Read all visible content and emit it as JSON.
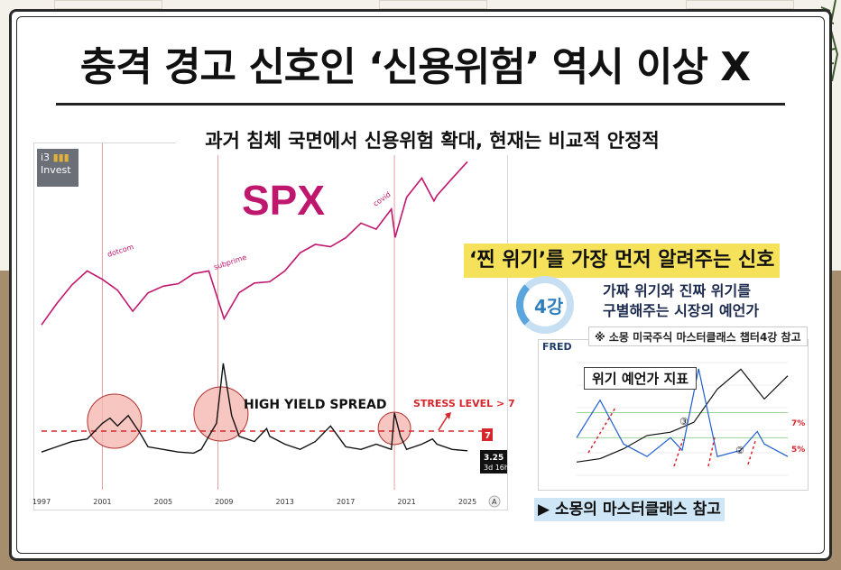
{
  "title": "충격 경고 신호인 ‘신용위험’ 역시 이상 X",
  "subtitle": "과거 침체 국면에서 신용위험 확대, 현재는 비교적 안정적",
  "left_chart": {
    "logo_line1": "i3",
    "logo_line2": "Invest",
    "spx_label": "SPX",
    "annotations": {
      "dotcom": "dotcom",
      "subprime": "subprime",
      "covid": "covid",
      "hy_spread": "HIGH YIELD SPREAD",
      "stress": "STRESS LEVEL > 7"
    },
    "current_marker": "7",
    "value_box": "3.25",
    "value_box_time": "3d 16h",
    "corner_icon": "A",
    "x_ticks": [
      "1997",
      "2001",
      "2005",
      "2009",
      "2013",
      "2017",
      "2021",
      "2025"
    ]
  },
  "highlight_title": "‘찐 위기’를 가장 먼저 알려주는 신호",
  "lecture": {
    "badge": "4강",
    "line1": "가짜 위기와 진짜 위기를",
    "line2": "구별해주는 시장의 예언가"
  },
  "reference_note": "※ 소몽 미국주식 마스터클래스 챕터4강 참고",
  "fred_chart": {
    "logo": "FRED",
    "title": "위기 예언가 지표",
    "pct_7": "7%",
    "pct_5": "5%",
    "marker_2": "②",
    "marker_3": "③"
  },
  "footnote": "▶ 소몽의 마스터클래스 참고",
  "colors": {
    "spx_line": "#c0176e",
    "spread_line": "#111111",
    "stress_line": "#d6262c",
    "crisis_circle_fill": "#f6b8b0",
    "highlight_yellow": "#f6e25a",
    "footnote_blue": "#cfe6f7"
  },
  "chart_data": [
    {
      "type": "line",
      "title": "SPX",
      "x_range": [
        1997,
        2025
      ],
      "x_ticks": [
        1997,
        2001,
        2005,
        2009,
        2013,
        2017,
        2021,
        2025
      ],
      "ylabel": "",
      "scale": "log",
      "series": [
        {
          "name": "SPX",
          "x": [
            1997,
            1998,
            1999,
            2000,
            2001,
            2002,
            2003,
            2004,
            2005,
            2006,
            2007,
            2008,
            2009,
            2010,
            2011,
            2012,
            2013,
            2014,
            2015,
            2016,
            2017,
            2018,
            2019,
            2020,
            2020.25,
            2021,
            2022,
            2022.8,
            2023,
            2024,
            2025
          ],
          "values": [
            740,
            970,
            1230,
            1469,
            1320,
            1150,
            880,
            1110,
            1210,
            1250,
            1420,
            1470,
            800,
            1115,
            1260,
            1280,
            1470,
            1850,
            2060,
            2000,
            2240,
            2700,
            2500,
            3230,
            2250,
            3750,
            4790,
            3580,
            3840,
            4770,
            5900
          ]
        }
      ],
      "annotations": [
        "dotcom",
        "subprime",
        "covid"
      ],
      "crisis_lines_x": [
        2001,
        2008.6,
        2020.2
      ]
    },
    {
      "type": "line",
      "title": "HIGH YIELD SPREAD",
      "x_range": [
        1997,
        2025
      ],
      "ylim": [
        2,
        21
      ],
      "reference_line": {
        "label": "STRESS LEVEL > 7",
        "value": 7
      },
      "current_value": 3.25,
      "series": [
        {
          "name": "HIGH YIELD SPREAD",
          "x": [
            1997,
            1998,
            1999,
            2000,
            2001,
            2001.5,
            2002,
            2002.7,
            2003.5,
            2004,
            2005,
            2006,
            2007,
            2007.5,
            2008,
            2008.5,
            2008.95,
            2009.5,
            2010,
            2011,
            2011.8,
            2012,
            2013,
            2014,
            2015,
            2016,
            2016.5,
            2017,
            2018,
            2019,
            2020,
            2020.2,
            2020.6,
            2021,
            2022,
            2022.7,
            2023,
            2024,
            2025
          ],
          "values": [
            3.0,
            4.0,
            5.0,
            5.5,
            8.5,
            9.5,
            8.0,
            10.0,
            6.5,
            4.0,
            3.5,
            3.0,
            2.8,
            3.5,
            6.0,
            8.5,
            20.0,
            10.0,
            6.0,
            5.0,
            7.5,
            6.0,
            4.5,
            3.5,
            5.0,
            8.0,
            6.0,
            4.0,
            3.5,
            4.5,
            3.5,
            10.5,
            6.0,
            3.5,
            4.5,
            5.5,
            4.5,
            3.5,
            3.25
          ]
        }
      ],
      "highlighted_crises_x": [
        2001.8,
        2008.8,
        2020.2
      ]
    },
    {
      "type": "line",
      "title": "위기 예언가 지표",
      "x_range": [
        2015,
        2024
      ],
      "series": [
        {
          "name": "",
          "x": [
            2015,
            2016,
            2017,
            2018,
            2019,
            2020,
            2021,
            2022,
            2023,
            2024
          ],
          "values": [
            2000,
            2100,
            2400,
            2800,
            2900,
            3200,
            4200,
            4800,
            3900,
            4600
          ]
        },
        {
          "name": "",
          "x": [
            2015,
            2016,
            2017,
            2018,
            2019,
            2019.5,
            2020.2,
            2021,
            2022,
            2022.7,
            2023,
            2024
          ],
          "values": [
            5.0,
            8.0,
            4.5,
            3.5,
            5.0,
            4.0,
            10.5,
            3.5,
            4.0,
            5.5,
            4.5,
            3.5
          ]
        }
      ],
      "reference_lines": [
        "7%",
        "5%"
      ]
    }
  ]
}
